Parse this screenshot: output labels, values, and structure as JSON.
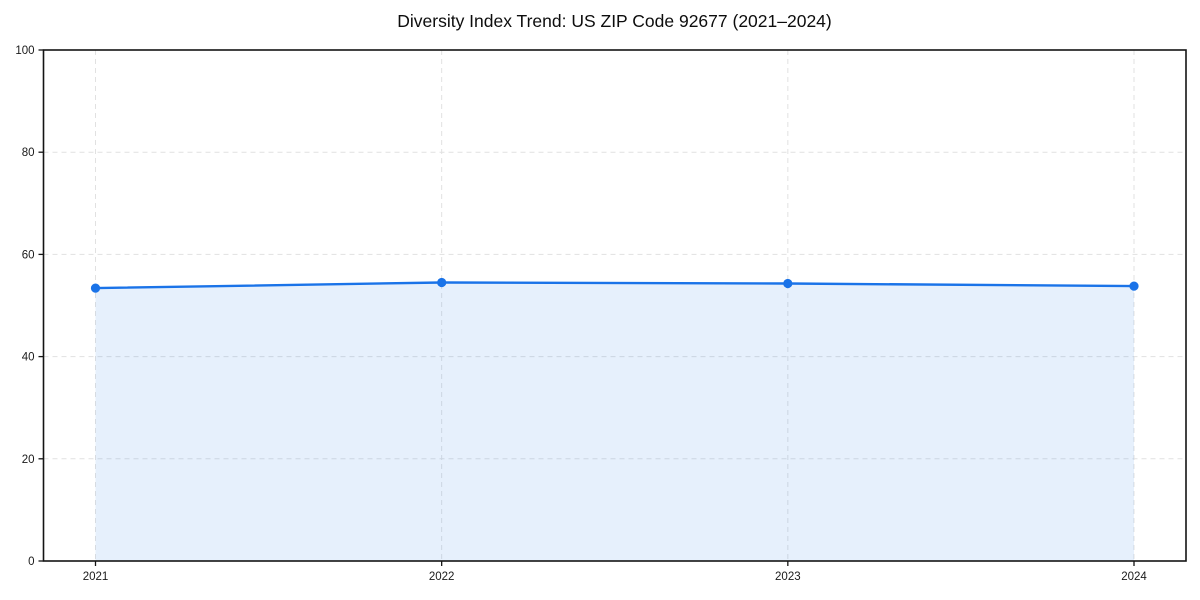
{
  "figure": {
    "background": "#ffffff"
  },
  "chart_data": {
    "type": "area",
    "title": "Diversity Index Trend: US ZIP Code 92677 (2021–2024)",
    "x": [
      "2021",
      "2022",
      "2023",
      "2024"
    ],
    "series": [
      {
        "name": "Diversity Index",
        "values": [
          53.4,
          54.5,
          54.3,
          53.8
        ]
      }
    ],
    "xlabel": "",
    "ylabel": "",
    "ylim": [
      0,
      100
    ],
    "yticks": [
      0,
      20,
      40,
      60,
      80,
      100
    ],
    "grid": true,
    "grid_style": "dashed",
    "legend": "none",
    "marker": "circle",
    "colors": {
      "line": "#1a73e8",
      "marker": "#1a73e8",
      "fill": "#1a73e8",
      "fill_opacity": 0.11,
      "grid": "#e1e1e1",
      "spine": "#141414",
      "text": "#1a1a1a",
      "background": "#ffffff"
    }
  }
}
